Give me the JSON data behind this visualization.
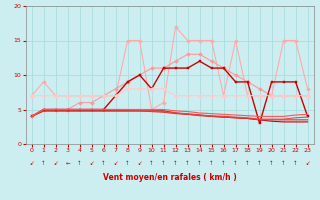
{
  "xlabel": "Vent moyen/en rafales ( km/h )",
  "xlim": [
    -0.5,
    23.5
  ],
  "ylim": [
    0,
    20
  ],
  "yticks": [
    0,
    5,
    10,
    15,
    20
  ],
  "xticks": [
    0,
    1,
    2,
    3,
    4,
    5,
    6,
    7,
    8,
    9,
    10,
    11,
    12,
    13,
    14,
    15,
    16,
    17,
    18,
    19,
    20,
    21,
    22,
    23
  ],
  "background_color": "#cceef0",
  "grid_color": "#aadddd",
  "series": [
    {
      "y": [
        7,
        9,
        7,
        7,
        7,
        7,
        7,
        7,
        15,
        15,
        5,
        6,
        17,
        15,
        15,
        15,
        7,
        15,
        7,
        7,
        7,
        15,
        15,
        8
      ],
      "color": "#ffaaaa",
      "marker": "D",
      "markersize": 2.0,
      "linewidth": 0.8,
      "linestyle": "-"
    },
    {
      "y": [
        4,
        5,
        5,
        5,
        6,
        6,
        7,
        8,
        9,
        10,
        11,
        11,
        12,
        13,
        13,
        12,
        11,
        10,
        9,
        8,
        7,
        7,
        7,
        7
      ],
      "color": "#ff9999",
      "marker": "D",
      "markersize": 2.0,
      "linewidth": 0.8,
      "linestyle": "-"
    },
    {
      "y": [
        4,
        5,
        5,
        5,
        5,
        5,
        5,
        7,
        9,
        10,
        8,
        11,
        11,
        11,
        12,
        11,
        11,
        9,
        9,
        3,
        9,
        9,
        9,
        4
      ],
      "color": "#cc0000",
      "marker": "s",
      "markersize": 1.8,
      "linewidth": 1.0,
      "linestyle": "-"
    },
    {
      "y": [
        4,
        4.8,
        4.8,
        4.8,
        4.8,
        4.8,
        4.8,
        4.8,
        4.8,
        4.8,
        4.8,
        4.8,
        4.5,
        4.3,
        4.2,
        4.0,
        3.9,
        3.8,
        3.7,
        3.5,
        3.3,
        3.2,
        3.2,
        3.2
      ],
      "color": "#cc0000",
      "marker": null,
      "markersize": 0,
      "linewidth": 0.8,
      "linestyle": "-"
    },
    {
      "y": [
        4,
        4.8,
        4.8,
        4.8,
        4.8,
        4.8,
        4.8,
        4.8,
        4.8,
        4.8,
        4.7,
        4.6,
        4.4,
        4.3,
        4.1,
        4.0,
        3.9,
        3.8,
        3.7,
        3.5,
        3.5,
        3.5,
        3.5,
        3.5
      ],
      "color": "#dd3333",
      "marker": null,
      "markersize": 0,
      "linewidth": 0.8,
      "linestyle": "-"
    },
    {
      "y": [
        4,
        5,
        5,
        5,
        5,
        5,
        5,
        5,
        5,
        4.9,
        4.8,
        4.7,
        4.5,
        4.4,
        4.2,
        4.1,
        4.0,
        3.9,
        3.8,
        3.6,
        3.6,
        3.6,
        3.8,
        3.9
      ],
      "color": "#ee4444",
      "marker": null,
      "markersize": 0,
      "linewidth": 0.8,
      "linestyle": "-"
    },
    {
      "y": [
        4,
        5,
        5,
        5,
        5,
        5,
        5,
        5,
        5,
        5,
        5,
        5,
        4.8,
        4.7,
        4.5,
        4.4,
        4.3,
        4.2,
        4.1,
        4.0,
        4.0,
        4.0,
        4.2,
        4.3
      ],
      "color": "#ff5555",
      "marker": null,
      "markersize": 0,
      "linewidth": 0.8,
      "linestyle": "-"
    },
    {
      "y": [
        7,
        7,
        7,
        7,
        7,
        7,
        7,
        7,
        8,
        8,
        8,
        8,
        7,
        7,
        7,
        7,
        7,
        7,
        7,
        7,
        7,
        7,
        7,
        7
      ],
      "color": "#ffcccc",
      "marker": "D",
      "markersize": 2.0,
      "linewidth": 0.8,
      "linestyle": "-"
    }
  ],
  "wind_arrow_chars": [
    "↙",
    "↑",
    "↙",
    "←",
    "↑",
    "↙",
    "↑",
    "↙",
    "↑",
    "↙",
    "↑",
    "↑",
    "↑",
    "↑",
    "↑",
    "↑",
    "↑",
    "↑",
    "↑",
    "↑",
    "↑",
    "↑",
    "↑",
    "↙"
  ],
  "arrow_color": "#cc0000"
}
